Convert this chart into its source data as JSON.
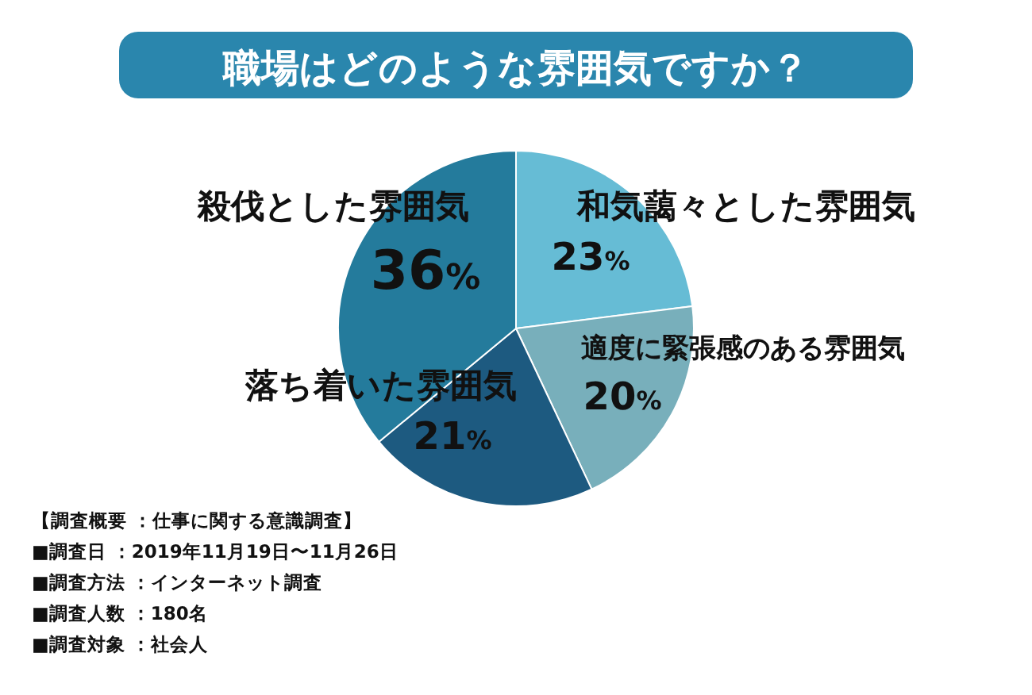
{
  "chart_data": {
    "type": "pie",
    "title": "職場はどのような雰囲気ですか？",
    "categories": [
      "和気藹々とした雰囲気",
      "適度に緊張感のある雰囲気",
      "落ち着いた雰囲気",
      "殺伐とした雰囲気"
    ],
    "values": [
      23,
      20,
      21,
      36
    ],
    "colors": [
      "#66bcd5",
      "#78afbb",
      "#1d5a80",
      "#247b9c"
    ],
    "value_labels": [
      "23%",
      "20%",
      "21%",
      "36%"
    ],
    "annotations": [
      "【調査概要 ：仕事に関する意識調査】",
      "■調査日 ：2019年11月19日〜11月26日",
      "■調査方法 ：インターネット調査",
      "■調査人数 ：180名",
      "■調査対象 ：社会人"
    ]
  }
}
